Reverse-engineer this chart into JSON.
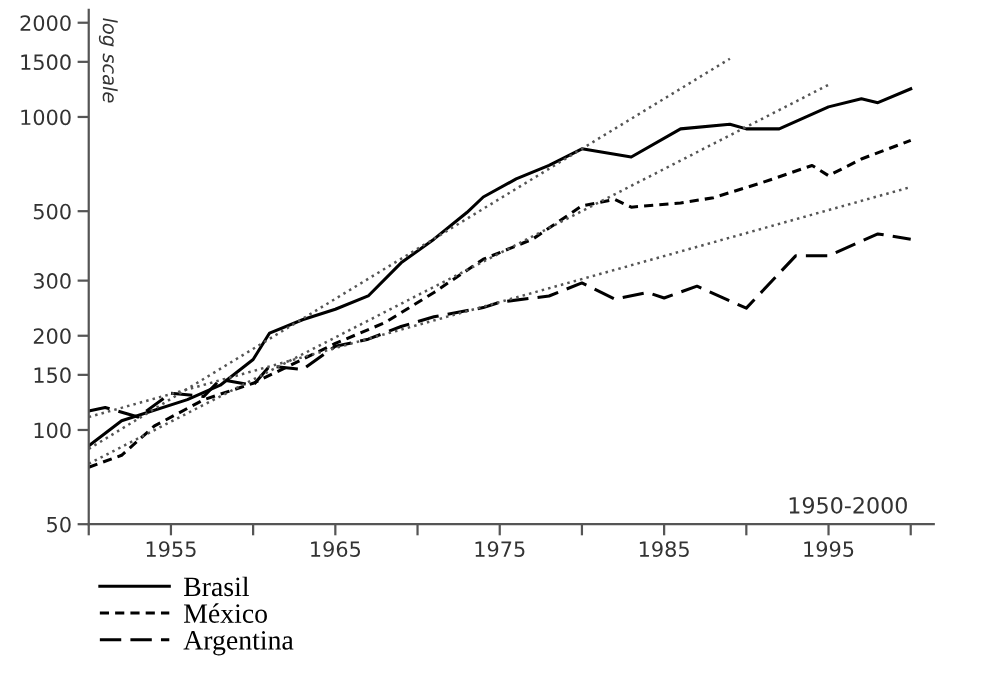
{
  "chart_data": {
    "type": "line",
    "log": "y",
    "legend": "bottom left",
    "grid": false,
    "annotations": [
      "log scale",
      "1950-2000"
    ],
    "xlim": [
      1950,
      2001.4
    ],
    "ylim": [
      50,
      2200
    ],
    "xticks": [
      {
        "value": 1950,
        "label": null
      },
      1955,
      {
        "value": 1960,
        "label": null
      },
      1965,
      {
        "value": 1970,
        "label": null
      },
      1975,
      {
        "value": 1980,
        "label": null
      },
      1985,
      {
        "value": 1990,
        "label": null
      },
      1995,
      {
        "value": 2000,
        "label": null
      }
    ],
    "yticks": [
      50,
      100,
      150,
      200,
      300,
      500,
      1000,
      1500,
      2000
    ],
    "series": [
      {
        "name": "Brasil",
        "color": "#000000",
        "line_style": "solid",
        "x": [
          1950,
          1952,
          1956,
          1958,
          1960,
          1961,
          1963,
          1965,
          1967,
          1969,
          1971,
          1973,
          1974,
          1976,
          1978,
          1980,
          1983,
          1986,
          1989,
          1990,
          1992,
          1995,
          1997,
          1998,
          2000
        ],
        "values": [
          89,
          107,
          125,
          139,
          168,
          204,
          225,
          243,
          268,
          342,
          407,
          495,
          555,
          634,
          700,
          791,
          745,
          916,
          948,
          916,
          916,
          1077,
          1143,
          1111,
          1230
        ]
      },
      {
        "name": "México",
        "color": "#000000",
        "line_style": "dotted",
        "x": [
          1950,
          1952,
          1954,
          1957,
          1960,
          1963,
          1965,
          1968,
          1971,
          1974,
          1977,
          1980,
          1982,
          1983,
          1986,
          1988,
          1991,
          1994,
          1995,
          1997,
          2000
        ],
        "values": [
          76,
          83,
          103,
          125,
          141,
          168,
          189,
          220,
          275,
          351,
          407,
          520,
          545,
          515,
          531,
          552,
          618,
          700,
          649,
          734,
          842
        ]
      },
      {
        "name": "Argentina",
        "color": "#000000",
        "line_style": "dashed",
        "x": [
          1950,
          1951,
          1953,
          1955,
          1957,
          1958,
          1960,
          1961,
          1963,
          1965,
          1967,
          1969,
          1971,
          1974,
          1975,
          1978,
          1980,
          1982,
          1984,
          1985,
          1987,
          1990,
          1993,
          1995,
          1998,
          2000
        ],
        "values": [
          115,
          118,
          110,
          131,
          128,
          145,
          139,
          160,
          156,
          185,
          195,
          214,
          230,
          246,
          256,
          268,
          295,
          262,
          275,
          264,
          288,
          245,
          360,
          360,
          423,
          407
        ]
      },
      {
        "color": "#555555",
        "line_style": "dotted",
        "x": [
          1950,
          1989
        ],
        "values": [
          87,
          1535
        ]
      },
      {
        "color": "#555555",
        "line_style": "dotted",
        "x": [
          1950,
          1995
        ],
        "values": [
          78,
          1267
        ]
      },
      {
        "color": "#555555",
        "line_style": "dotted",
        "x": [
          1950,
          2000
        ],
        "values": [
          110,
          597
        ]
      }
    ]
  }
}
